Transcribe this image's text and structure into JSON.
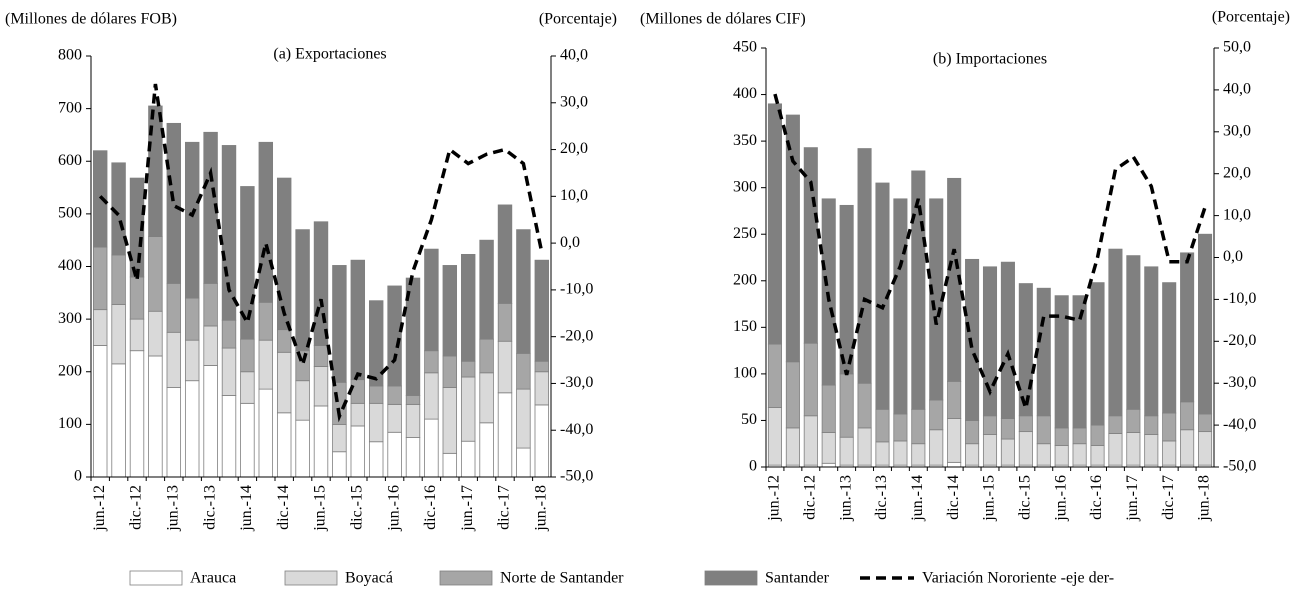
{
  "chart_data": [
    {
      "type": "bar",
      "stacked": true,
      "title": "(a) Exportaciones",
      "ylabel": "(Millones de dólares FOB)",
      "y2label": "(Porcentaje)",
      "categories": [
        "jun.-12",
        null,
        "dic.-12",
        null,
        "jun.-13",
        null,
        "dic.-13",
        null,
        "jun.-14",
        null,
        "dic.-14",
        null,
        "jun.-15",
        null,
        "dic.-15",
        null,
        "jun.-16",
        null,
        "dic.-16",
        null,
        "jun.-17",
        null,
        "dic.-17",
        null,
        "jun.-18"
      ],
      "series": [
        {
          "name": "Arauca",
          "color": "#ffffff",
          "values": [
            250,
            215,
            240,
            230,
            170,
            183,
            212,
            155,
            140,
            167,
            122,
            108,
            135,
            48,
            97,
            67,
            85,
            75,
            110,
            45,
            68,
            103,
            160,
            55,
            137
          ]
        },
        {
          "name": "Boyacá",
          "color": "#d9d9d9",
          "values": [
            68,
            113,
            60,
            85,
            105,
            77,
            75,
            90,
            60,
            93,
            115,
            75,
            75,
            52,
            43,
            73,
            53,
            63,
            88,
            125,
            122,
            95,
            98,
            112,
            63
          ]
        },
        {
          "name": "Norte de Santander",
          "color": "#a6a6a6",
          "values": [
            119,
            94,
            80,
            142,
            93,
            80,
            81,
            53,
            62,
            72,
            43,
            57,
            40,
            80,
            45,
            33,
            35,
            17,
            42,
            60,
            30,
            64,
            72,
            68,
            20
          ]
        },
        {
          "name": "Santander",
          "color": "#808080",
          "values": [
            183,
            175,
            188,
            248,
            304,
            296,
            287,
            332,
            290,
            304,
            288,
            230,
            235,
            222,
            227,
            162,
            190,
            223,
            193,
            172,
            203,
            188,
            187,
            235,
            192
          ]
        },
        {
          "name": "Variación Nororiente -eje der-",
          "type": "line",
          "axis": "y2",
          "color": "#000000",
          "dashed": true,
          "values": [
            10,
            6,
            -8,
            34,
            8,
            6,
            15,
            -10,
            -17,
            0,
            -15,
            -26,
            -12,
            -37,
            -28,
            -29,
            -25,
            -6,
            5,
            20,
            17,
            19,
            20,
            17,
            -2
          ]
        }
      ],
      "ylim": [
        0,
        800
      ],
      "yticks": [
        0,
        100,
        200,
        300,
        400,
        500,
        600,
        700,
        800
      ],
      "y2lim": [
        -50,
        40
      ],
      "y2ticks": [
        {
          "value": -50,
          "label": "-50,0"
        },
        {
          "value": -40,
          "label": "-40,0"
        },
        {
          "value": -30,
          "label": "-30,0"
        },
        {
          "value": -20,
          "label": "-20,0"
        },
        {
          "value": -10,
          "label": "-10,0"
        },
        {
          "value": 0,
          "label": "0,0"
        },
        {
          "value": 10,
          "label": "10,0"
        },
        {
          "value": 20,
          "label": "20,0"
        },
        {
          "value": 30,
          "label": "30,0"
        },
        {
          "value": 40,
          "label": "40,0"
        }
      ]
    },
    {
      "type": "bar",
      "stacked": true,
      "title": "(b) Importaciones",
      "ylabel": "(Millones de dólares CIF)",
      "y2label": "(Porcentaje)",
      "categories": [
        "jun.-12",
        null,
        "dic.-12",
        null,
        "jun.-13",
        null,
        "dic.-13",
        null,
        "jun.-14",
        null,
        "dic.-14",
        null,
        "jun.-15",
        null,
        "dic.-15",
        null,
        "jun.-16",
        null,
        "dic.-16",
        null,
        "jun.-17",
        null,
        "dic.-17",
        null,
        "jun.-18"
      ],
      "series": [
        {
          "name": "Arauca",
          "color": "#ffffff",
          "values": [
            2,
            2,
            2,
            4,
            2,
            2,
            2,
            2,
            2,
            2,
            5,
            2,
            2,
            2,
            2,
            2,
            2,
            2,
            2,
            2,
            2,
            2,
            2,
            2,
            2
          ]
        },
        {
          "name": "Boyacá",
          "color": "#d9d9d9",
          "values": [
            62,
            40,
            53,
            33,
            30,
            40,
            25,
            26,
            23,
            38,
            47,
            23,
            33,
            28,
            36,
            23,
            21,
            23,
            21,
            34,
            35,
            33,
            26,
            38,
            36
          ]
        },
        {
          "name": "Norte de Santander",
          "color": "#a6a6a6",
          "values": [
            68,
            71,
            78,
            51,
            68,
            48,
            35,
            29,
            37,
            32,
            40,
            25,
            20,
            22,
            17,
            30,
            19,
            17,
            22,
            19,
            25,
            20,
            30,
            30,
            19
          ]
        },
        {
          "name": "Santander",
          "color": "#808080",
          "values": [
            258,
            265,
            210,
            200,
            181,
            252,
            243,
            231,
            256,
            216,
            218,
            173,
            160,
            168,
            142,
            137,
            142,
            142,
            153,
            179,
            165,
            160,
            140,
            160,
            193
          ]
        },
        {
          "name": "Variación Nororiente -eje der-",
          "type": "line",
          "axis": "y2",
          "color": "#000000",
          "dashed": true,
          "values": [
            39,
            23,
            18,
            -10,
            -28,
            -10,
            -12,
            -2,
            14,
            -16,
            2,
            -22,
            -32,
            -23,
            -36,
            -14,
            -14,
            -15,
            0,
            21,
            24,
            17,
            -1,
            -1,
            12
          ]
        }
      ],
      "ylim": [
        0,
        450
      ],
      "yticks": [
        0,
        50,
        100,
        150,
        200,
        250,
        300,
        350,
        400,
        450
      ],
      "y2lim": [
        -50,
        50
      ],
      "y2ticks": [
        {
          "value": -50,
          "label": "-50,0"
        },
        {
          "value": -40,
          "label": "-40,0"
        },
        {
          "value": -30,
          "label": "-30,0"
        },
        {
          "value": -20,
          "label": "-20,0"
        },
        {
          "value": -10,
          "label": "-10,0"
        },
        {
          "value": 0,
          "label": "0,0"
        },
        {
          "value": 10,
          "label": "10,0"
        },
        {
          "value": 20,
          "label": "20,0"
        },
        {
          "value": 30,
          "label": "30,0"
        },
        {
          "value": 40,
          "label": "40,0"
        },
        {
          "value": 50,
          "label": "50,0"
        }
      ]
    }
  ]
}
